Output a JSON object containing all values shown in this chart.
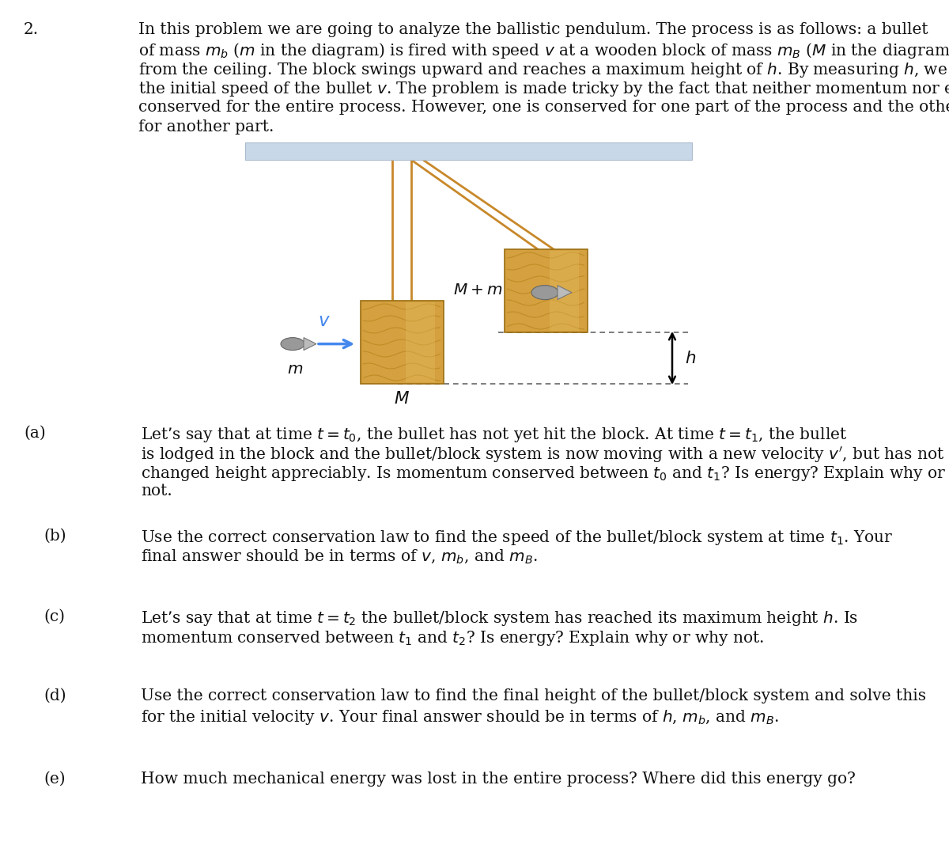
{
  "bg_color": "#ffffff",
  "ceiling_color": "#c8d8e8",
  "rope_color": "#c8882a",
  "wood_color": "#d4a040",
  "wood_dark_color": "#b8861e",
  "wood_light_color": "#e8c060",
  "bullet_color": "#888888",
  "bullet_light_color": "#aaaaaa",
  "dotted_line_color": "#666666",
  "arrow_color": "#4488ee",
  "h_arrow_color": "#000000",
  "text_color": "#111111",
  "intro_lines": [
    "In this problem we are going to analyze the ballistic pendulum. The process is as follows: a bullet",
    "of mass $m_b$ ($m$ in the diagram) is fired with speed $v$ at a wooden block of mass $m_B$ ($M$ in the diagram) hanging",
    "from the ceiling. The block swings upward and reaches a maximum height of $h$. By measuring $h$, we can find",
    "the initial speed of the bullet $v$. The problem is made tricky by the fact that neither momentum nor energy is",
    "conserved for the entire process. However, one is conserved for one part of the process and the other is conserved",
    "for another part."
  ],
  "part_a_lines": [
    "Let’s say that at time $t = t_0$, the bullet has not yet hit the block. At time $t = t_1$, the bullet",
    "is lodged in the block and the bullet/block system is now moving with a new velocity $v'$, but has not yet",
    "changed height appreciably. Is momentum conserved between $t_0$ and $t_1$? Is energy? Explain why or why",
    "not."
  ],
  "part_b_lines": [
    "Use the correct conservation law to find the speed of the bullet/block system at time $t_1$. Your",
    "final answer should be in terms of $v$, $m_b$, and $m_B$."
  ],
  "part_c_lines": [
    "Let’s say that at time $t = t_2$ the bullet/block system has reached its maximum height $h$. Is",
    "momentum conserved between $t_1$ and $t_2$? Is energy? Explain why or why not."
  ],
  "part_d_lines": [
    "Use the correct conservation law to find the final height of the bullet/block system and solve this",
    "for the initial velocity $v$. Your final answer should be in terms of $h$, $m_b$, and $m_B$."
  ],
  "part_e_lines": [
    "How much mechanical energy was lost in the entire process? Where did this energy go?"
  ]
}
